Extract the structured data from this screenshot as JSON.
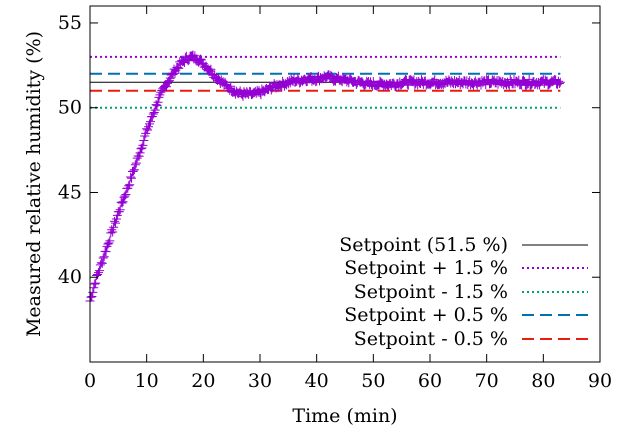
{
  "chart_data": {
    "type": "scatter",
    "xlabel": "Time (min)",
    "ylabel": "Measured relative humidity (%)",
    "xlim": [
      0,
      90
    ],
    "ylim": [
      35,
      56
    ],
    "xticks": [
      0,
      10,
      20,
      30,
      40,
      50,
      60,
      70,
      80,
      90
    ],
    "yticks": [
      40,
      45,
      50,
      55
    ],
    "grid": false,
    "legend_position": "bottom-right",
    "measurement": {
      "marker": "plus",
      "color": "#9400d3",
      "x": [
        0,
        1,
        2,
        3,
        4,
        5,
        6,
        7,
        8,
        9,
        10,
        11,
        12,
        13,
        14,
        15,
        16,
        17,
        18,
        19,
        20,
        21,
        22,
        23,
        24,
        25,
        26,
        27,
        28,
        29,
        30,
        31,
        32,
        33,
        34,
        35,
        36,
        37,
        38,
        39,
        40,
        41,
        42,
        43,
        44,
        45,
        46,
        47,
        48,
        49,
        50,
        51,
        52,
        53,
        54,
        55,
        56,
        57,
        58,
        59,
        60,
        61,
        62,
        63,
        64,
        65,
        66,
        67,
        68,
        69,
        70,
        71,
        72,
        73,
        74,
        75,
        76,
        77,
        78,
        79,
        80,
        81,
        82,
        83
      ],
      "y": [
        38.6,
        39.8,
        40.8,
        41.8,
        42.8,
        43.8,
        44.7,
        45.6,
        46.6,
        47.6,
        48.6,
        49.5,
        50.4,
        51.1,
        51.7,
        52.2,
        52.6,
        52.9,
        53.0,
        52.9,
        52.6,
        52.3,
        51.9,
        51.6,
        51.3,
        51.1,
        50.9,
        50.8,
        50.8,
        50.8,
        50.9,
        51.0,
        51.2,
        51.3,
        51.4,
        51.5,
        51.6,
        51.6,
        51.7,
        51.7,
        51.7,
        51.8,
        51.8,
        51.7,
        51.7,
        51.6,
        51.6,
        51.5,
        51.5,
        51.4,
        51.4,
        51.4,
        51.4,
        51.4,
        51.4,
        51.5,
        51.5,
        51.5,
        51.5,
        51.5,
        51.5,
        51.5,
        51.5,
        51.5,
        51.5,
        51.5,
        51.5,
        51.5,
        51.5,
        51.5,
        51.5,
        51.5,
        51.5,
        51.5,
        51.5,
        51.5,
        51.5,
        51.5,
        51.5,
        51.5,
        51.5,
        51.5,
        51.5,
        51.5
      ]
    },
    "series": [
      {
        "name": "Setpoint (51.5 %)",
        "value": 51.5,
        "color": "#000000",
        "dash": "solid",
        "x_range": [
          0,
          83
        ]
      },
      {
        "name": "Setpoint + 1.5 %",
        "value": 53.0,
        "color": "#9400d3",
        "dash": "dotted",
        "x_range": [
          0,
          83
        ]
      },
      {
        "name": "Setpoint - 1.5 %",
        "value": 50.0,
        "color": "#009e73",
        "dash": "dotted",
        "x_range": [
          0,
          83
        ]
      },
      {
        "name": "Setpoint + 0.5 %",
        "value": 52.0,
        "color": "#0072b2",
        "dash": "dashed",
        "x_range": [
          0,
          83
        ]
      },
      {
        "name": "Setpoint - 0.5 %",
        "value": 51.0,
        "color": "#e51e10",
        "dash": "dashed",
        "x_range": [
          0,
          83
        ]
      }
    ]
  }
}
